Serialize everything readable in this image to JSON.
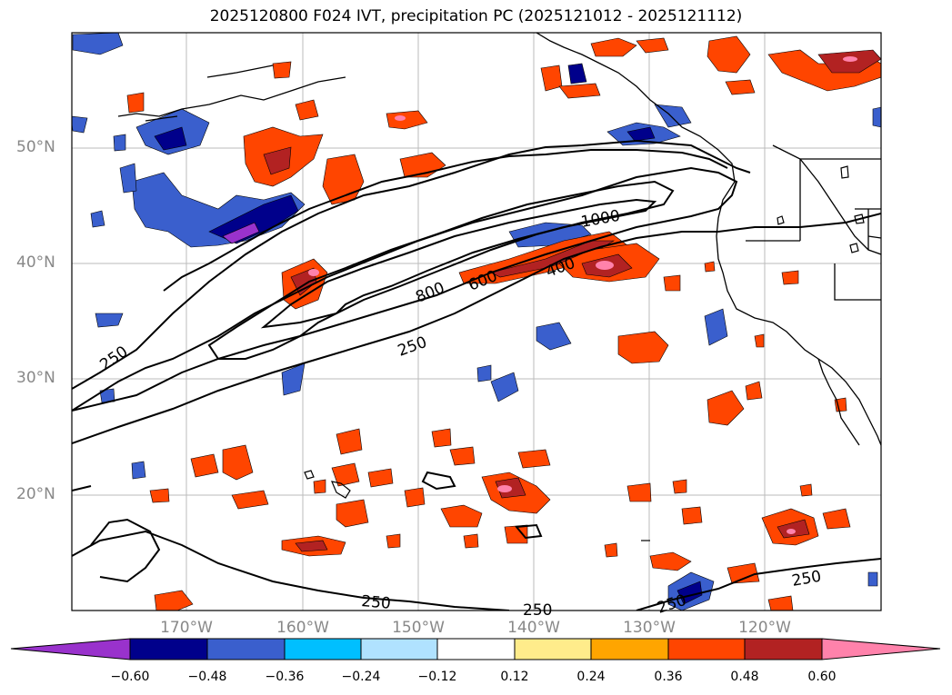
{
  "title": "2025120800 F024 IVT, precipitation PC (2025121012 - 2025121112)",
  "lat_labels": [
    "50°N",
    "40°N",
    "30°N",
    "20°N"
  ],
  "lon_labels": [
    "170°W",
    "160°W",
    "150°W",
    "140°W",
    "130°W",
    "120°W"
  ],
  "contour_labels": [
    "1000",
    "800",
    "600",
    "400",
    "250",
    "250",
    "250",
    "250",
    "250",
    "250"
  ],
  "colorbar": {
    "ticks": [
      "−0.60",
      "−0.48",
      "−0.36",
      "−0.24",
      "−0.12",
      "0.12",
      "0.24",
      "0.36",
      "0.48",
      "0.60"
    ],
    "colors": [
      "#9932cc",
      "#00008b",
      "#3a5fcd",
      "#00bfff",
      "#b0e2ff",
      "#ffffff",
      "#ffec8b",
      "#ffa500",
      "#ff4500",
      "#b22222",
      "#ff82ab"
    ]
  },
  "palette": {
    "land": "#000000",
    "grid": "#bbbbbb",
    "ivt": "#000000"
  }
}
